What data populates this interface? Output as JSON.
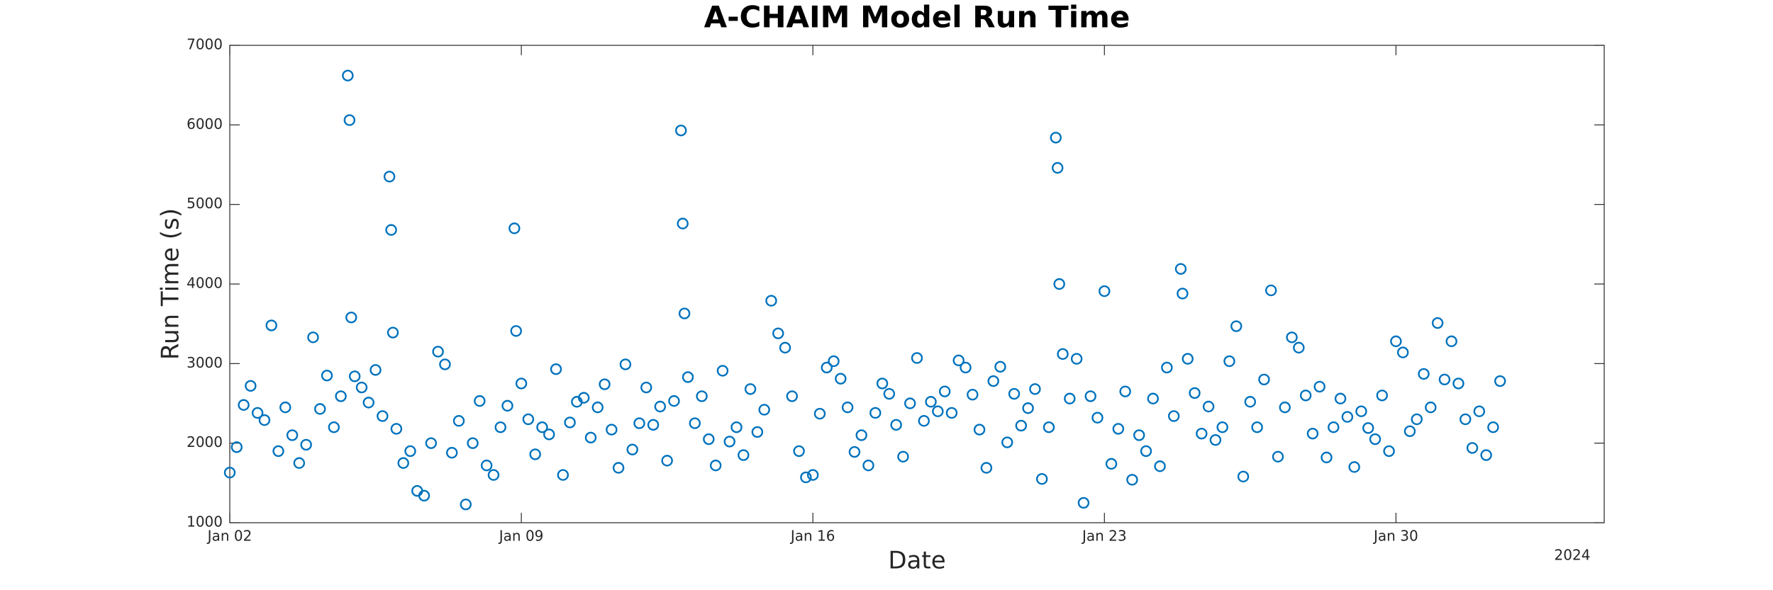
{
  "chart_data": {
    "type": "scatter",
    "title": "A-CHAIM Model Run Time",
    "x_label": "Date",
    "y_label": "Run Time (s)",
    "x_secondary_label": "2024",
    "color": "#0072bd",
    "marker": "open-circle",
    "xlim": [
      "2024-01-02T00:00",
      "2024-02-04T00:00"
    ],
    "xticks": [
      {
        "value": "2024-01-02T00:00",
        "label": "Jan 02"
      },
      {
        "value": "2024-01-09T00:00",
        "label": "Jan 09"
      },
      {
        "value": "2024-01-16T00:00",
        "label": "Jan 16"
      },
      {
        "value": "2024-01-23T00:00",
        "label": "Jan 23"
      },
      {
        "value": "2024-01-30T00:00",
        "label": "Jan 30"
      }
    ],
    "ylim": [
      1000,
      7000
    ],
    "yticks": [
      1000,
      2000,
      3000,
      4000,
      5000,
      6000,
      7000
    ],
    "x": [
      "2024-01-02T00:00",
      "2024-01-02T04:00",
      "2024-01-02T08:00",
      "2024-01-02T12:00",
      "2024-01-02T16:00",
      "2024-01-02T20:00",
      "2024-01-03T00:00",
      "2024-01-03T04:00",
      "2024-01-03T08:00",
      "2024-01-03T12:00",
      "2024-01-03T16:00",
      "2024-01-03T20:00",
      "2024-01-04T00:00",
      "2024-01-04T04:00",
      "2024-01-04T08:00",
      "2024-01-04T12:00",
      "2024-01-04T16:00",
      "2024-01-04T20:00",
      "2024-01-04T21:00",
      "2024-01-04T22:00",
      "2024-01-05T00:00",
      "2024-01-05T04:00",
      "2024-01-05T08:00",
      "2024-01-05T12:00",
      "2024-01-05T16:00",
      "2024-01-05T20:00",
      "2024-01-05T21:00",
      "2024-01-05T22:00",
      "2024-01-06T00:00",
      "2024-01-06T04:00",
      "2024-01-06T08:00",
      "2024-01-06T12:00",
      "2024-01-06T16:00",
      "2024-01-06T20:00",
      "2024-01-07T00:00",
      "2024-01-07T04:00",
      "2024-01-07T08:00",
      "2024-01-07T12:00",
      "2024-01-07T16:00",
      "2024-01-07T20:00",
      "2024-01-08T00:00",
      "2024-01-08T04:00",
      "2024-01-08T08:00",
      "2024-01-08T12:00",
      "2024-01-08T16:00",
      "2024-01-08T20:00",
      "2024-01-08T21:00",
      "2024-01-09T00:00",
      "2024-01-09T04:00",
      "2024-01-09T08:00",
      "2024-01-09T12:00",
      "2024-01-09T16:00",
      "2024-01-09T20:00",
      "2024-01-10T00:00",
      "2024-01-10T04:00",
      "2024-01-10T08:00",
      "2024-01-10T12:00",
      "2024-01-10T16:00",
      "2024-01-10T20:00",
      "2024-01-11T00:00",
      "2024-01-11T04:00",
      "2024-01-11T08:00",
      "2024-01-11T12:00",
      "2024-01-11T16:00",
      "2024-01-11T20:00",
      "2024-01-12T00:00",
      "2024-01-12T04:00",
      "2024-01-12T08:00",
      "2024-01-12T12:00",
      "2024-01-12T16:00",
      "2024-01-12T20:00",
      "2024-01-12T21:00",
      "2024-01-12T22:00",
      "2024-01-13T00:00",
      "2024-01-13T04:00",
      "2024-01-13T08:00",
      "2024-01-13T12:00",
      "2024-01-13T16:00",
      "2024-01-13T20:00",
      "2024-01-14T00:00",
      "2024-01-14T04:00",
      "2024-01-14T08:00",
      "2024-01-14T12:00",
      "2024-01-14T16:00",
      "2024-01-14T20:00",
      "2024-01-15T00:00",
      "2024-01-15T04:00",
      "2024-01-15T08:00",
      "2024-01-15T12:00",
      "2024-01-15T16:00",
      "2024-01-15T20:00",
      "2024-01-16T00:00",
      "2024-01-16T04:00",
      "2024-01-16T08:00",
      "2024-01-16T12:00",
      "2024-01-16T16:00",
      "2024-01-16T20:00",
      "2024-01-17T00:00",
      "2024-01-17T04:00",
      "2024-01-17T08:00",
      "2024-01-17T12:00",
      "2024-01-17T16:00",
      "2024-01-17T20:00",
      "2024-01-18T00:00",
      "2024-01-18T04:00",
      "2024-01-18T08:00",
      "2024-01-18T12:00",
      "2024-01-18T16:00",
      "2024-01-18T20:00",
      "2024-01-19T00:00",
      "2024-01-19T04:00",
      "2024-01-19T08:00",
      "2024-01-19T12:00",
      "2024-01-19T16:00",
      "2024-01-19T20:00",
      "2024-01-20T00:00",
      "2024-01-20T04:00",
      "2024-01-20T08:00",
      "2024-01-20T12:00",
      "2024-01-20T16:00",
      "2024-01-20T20:00",
      "2024-01-21T00:00",
      "2024-01-21T04:00",
      "2024-01-21T08:00",
      "2024-01-21T12:00",
      "2024-01-21T16:00",
      "2024-01-21T20:00",
      "2024-01-21T21:00",
      "2024-01-21T22:00",
      "2024-01-22T00:00",
      "2024-01-22T04:00",
      "2024-01-22T08:00",
      "2024-01-22T12:00",
      "2024-01-22T16:00",
      "2024-01-22T20:00",
      "2024-01-23T00:00",
      "2024-01-23T04:00",
      "2024-01-23T08:00",
      "2024-01-23T12:00",
      "2024-01-23T16:00",
      "2024-01-23T20:00",
      "2024-01-24T00:00",
      "2024-01-24T04:00",
      "2024-01-24T08:00",
      "2024-01-24T12:00",
      "2024-01-24T16:00",
      "2024-01-24T20:00",
      "2024-01-24T21:00",
      "2024-01-25T00:00",
      "2024-01-25T04:00",
      "2024-01-25T08:00",
      "2024-01-25T12:00",
      "2024-01-25T16:00",
      "2024-01-25T20:00",
      "2024-01-26T00:00",
      "2024-01-26T04:00",
      "2024-01-26T08:00",
      "2024-01-26T12:00",
      "2024-01-26T16:00",
      "2024-01-26T20:00",
      "2024-01-27T00:00",
      "2024-01-27T04:00",
      "2024-01-27T08:00",
      "2024-01-27T12:00",
      "2024-01-27T16:00",
      "2024-01-27T20:00",
      "2024-01-28T00:00",
      "2024-01-28T04:00",
      "2024-01-28T08:00",
      "2024-01-28T12:00",
      "2024-01-28T16:00",
      "2024-01-28T20:00",
      "2024-01-29T00:00",
      "2024-01-29T04:00",
      "2024-01-29T08:00",
      "2024-01-29T12:00",
      "2024-01-29T16:00",
      "2024-01-29T20:00",
      "2024-01-30T00:00",
      "2024-01-30T04:00",
      "2024-01-30T08:00",
      "2024-01-30T12:00",
      "2024-01-30T16:00",
      "2024-01-30T20:00",
      "2024-01-31T00:00",
      "2024-01-31T04:00",
      "2024-01-31T08:00",
      "2024-01-31T12:00",
      "2024-01-31T16:00",
      "2024-01-31T20:00",
      "2024-02-01T00:00",
      "2024-02-01T04:00",
      "2024-02-01T08:00",
      "2024-02-01T12:00"
    ],
    "values": [
      1630,
      1950,
      2480,
      2720,
      2380,
      2290,
      3480,
      1900,
      2450,
      2100,
      1750,
      1980,
      3330,
      2430,
      2850,
      2200,
      2590,
      6620,
      6060,
      3580,
      2840,
      2700,
      2510,
      2920,
      2340,
      5350,
      4680,
      3390,
      2180,
      1750,
      1900,
      1400,
      1340,
      2000,
      3150,
      2990,
      1880,
      2280,
      1230,
      2000,
      2530,
      1720,
      1600,
      2200,
      2470,
      4700,
      3410,
      2750,
      2300,
      1860,
      2200,
      2110,
      2930,
      1600,
      2260,
      2520,
      2570,
      2070,
      2450,
      2740,
      2170,
      1690,
      2990,
      1920,
      2250,
      2700,
      2230,
      2460,
      1780,
      2530,
      5930,
      4760,
      3630,
      2830,
      2250,
      2590,
      2050,
      1720,
      2910,
      2020,
      2200,
      1850,
      2680,
      2140,
      2420,
      3790,
      3380,
      3200,
      2590,
      1900,
      1570,
      1600,
      2370,
      2950,
      3030,
      2810,
      2450,
      1890,
      2100,
      1720,
      2380,
      2750,
      2620,
      2230,
      1830,
      2500,
      3070,
      2280,
      2520,
      2400,
      2650,
      2380,
      3040,
      2950,
      2610,
      2170,
      1690,
      2780,
      2960,
      2010,
      2620,
      2220,
      2440,
      2680,
      1550,
      2200,
      5840,
      5460,
      4000,
      3120,
      2560,
      3060,
      1250,
      2590,
      2320,
      3910,
      1740,
      2180,
      2650,
      1540,
      2100,
      1900,
      2560,
      1710,
      2950,
      2340,
      4190,
      3880,
      3060,
      2630,
      2120,
      2460,
      2040,
      2200,
      3030,
      3470,
      1580,
      2520,
      2200,
      2800,
      3920,
      1830,
      2450,
      3330,
      3200,
      2600,
      2120,
      2710,
      1820,
      2200,
      2560,
      2330,
      1700,
      2400,
      2190,
      2050,
      2600,
      1900,
      3280,
      3140,
      2150,
      2300,
      2870,
      2450,
      3510,
      2800,
      3280,
      2750,
      2300,
      1940,
      2400,
      1850,
      2200,
      2780
    ]
  }
}
